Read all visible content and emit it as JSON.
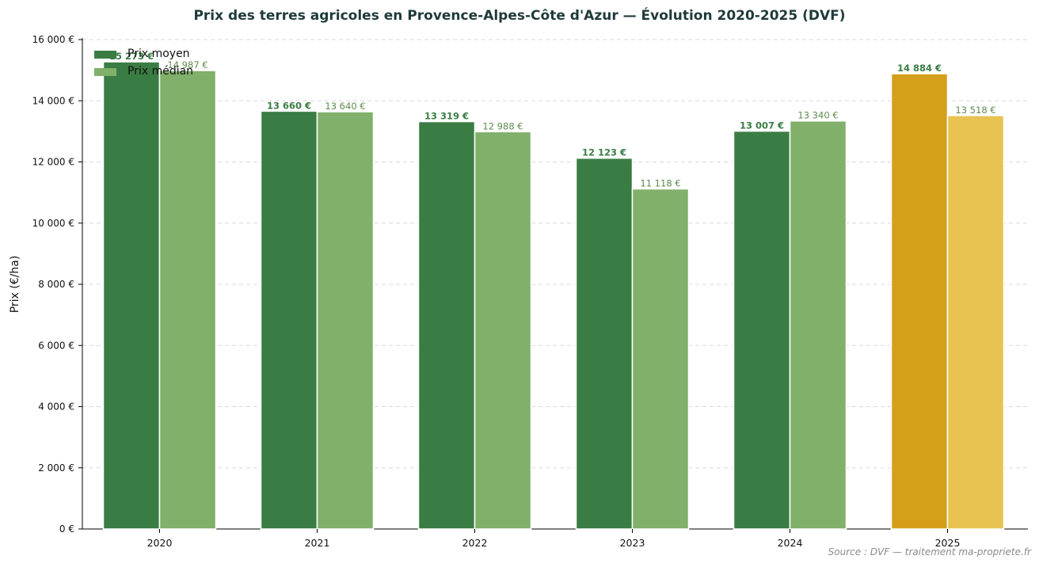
{
  "chart_data": {
    "type": "bar",
    "title": "Prix des terres agricoles en Provence-Alpes-Côte d'Azur — Évolution 2020-2025 (DVF)",
    "ylabel": "Prix (€/ha)",
    "xlabel": "",
    "categories": [
      "2020",
      "2021",
      "2022",
      "2023",
      "2024",
      "2025"
    ],
    "series": [
      {
        "name": "Prix moyen",
        "values": [
          15273,
          13660,
          13319,
          12123,
          13007,
          14884
        ],
        "labels": [
          "15 273 €",
          "13 660 €",
          "13 319 €",
          "12 123 €",
          "13 007 €",
          "14 884 €"
        ],
        "color": "#3a7d44",
        "highlight_color": "#d4a01c"
      },
      {
        "name": "Prix médian",
        "values": [
          14987,
          13640,
          12988,
          11118,
          13340,
          13518
        ],
        "labels": [
          "14 987 €",
          "13 640 €",
          "12 988 €",
          "11 118 €",
          "13 340 €",
          "13 518 €"
        ],
        "color": "#80b06a",
        "highlight_color": "#e8c352"
      }
    ],
    "highlight_category": "2025",
    "ylim": [
      0,
      16000
    ],
    "yticks": [
      0,
      2000,
      4000,
      6000,
      8000,
      10000,
      12000,
      14000,
      16000
    ],
    "ytick_labels": [
      "0 €",
      "2 000 €",
      "4 000 €",
      "6 000 €",
      "8 000 €",
      "10 000 €",
      "12 000 €",
      "14 000 €",
      "16 000 €"
    ],
    "grid": true,
    "legend_position": "top-left"
  },
  "source": "Source : DVF — traitement ma-propriete.fr"
}
